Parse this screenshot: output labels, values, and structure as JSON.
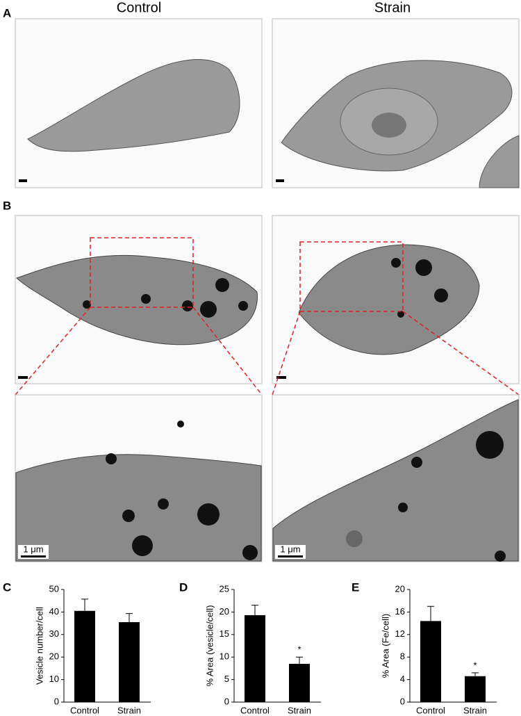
{
  "column_headers": [
    "Control",
    "Strain"
  ],
  "panel_labels": [
    "A",
    "B",
    "C",
    "D",
    "E"
  ],
  "scale_labels": [
    "1 μm",
    "1 μm"
  ],
  "chart_data": [
    {
      "type": "bar",
      "ylabel": "Vesicle number/cell",
      "categories": [
        "Control",
        "Strain"
      ],
      "values": [
        40.5,
        35.5
      ],
      "errors": [
        5.2,
        3.8
      ],
      "markers": [
        null,
        null
      ],
      "color": "#000000",
      "ylim": [
        0,
        50
      ],
      "yticks": [
        0,
        10,
        20,
        30,
        40,
        50
      ]
    },
    {
      "type": "bar",
      "ylabel": "% Area (vesicle/cell)",
      "categories": [
        "Control",
        "Strain"
      ],
      "values": [
        19.3,
        8.5
      ],
      "errors": [
        2.2,
        1.5
      ],
      "markers": [
        null,
        "*"
      ],
      "color": "#000000",
      "ylim": [
        0,
        25
      ],
      "yticks": [
        0,
        5,
        10,
        15,
        20,
        25
      ]
    },
    {
      "type": "bar",
      "ylabel": "% Area (Fe/cell)",
      "categories": [
        "Control",
        "Strain"
      ],
      "values": [
        14.4,
        4.6
      ],
      "errors": [
        2.6,
        0.6
      ],
      "markers": [
        null,
        "*"
      ],
      "color": "#000000",
      "ylim": [
        0,
        20
      ],
      "yticks": [
        0,
        4,
        8,
        12,
        16,
        20
      ]
    }
  ]
}
